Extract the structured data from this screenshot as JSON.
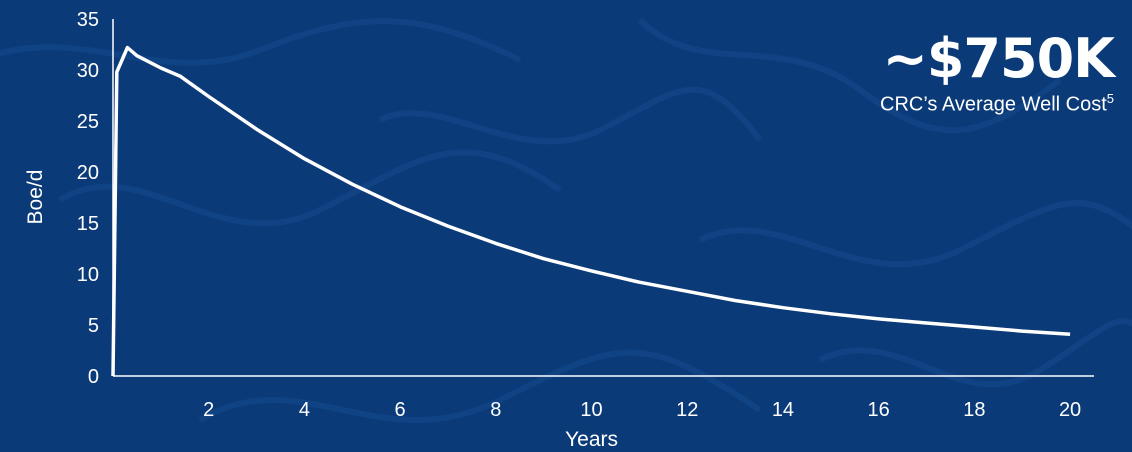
{
  "colors": {
    "background": "#0b3a78",
    "line": "#ffffff",
    "text": "#ffffff",
    "contour": "#164a8c"
  },
  "callout": {
    "value": "~$750K",
    "caption": "CRC’s Average Well Cost",
    "footnote": "5"
  },
  "chart_data": {
    "type": "line",
    "title": "",
    "xlabel": "Years",
    "ylabel": "Boe/d",
    "xlim": [
      0,
      20.5
    ],
    "ylim": [
      0,
      35
    ],
    "xticks": [
      2,
      4,
      6,
      8,
      10,
      12,
      14,
      16,
      18,
      20
    ],
    "yticks": [
      0,
      5,
      10,
      15,
      20,
      25,
      30,
      35
    ],
    "grid": false,
    "legend": "none",
    "series": [
      {
        "x": [
          0,
          0.08,
          0.3,
          0.5,
          1.0,
          1.4,
          2,
          3,
          4,
          5,
          6,
          7,
          8,
          9,
          10,
          11,
          12,
          13,
          14,
          15,
          16,
          17,
          18,
          19,
          20
        ],
        "y": [
          0,
          29.8,
          32.2,
          31.4,
          30.2,
          29.4,
          27.4,
          24.2,
          21.3,
          18.8,
          16.6,
          14.7,
          13.0,
          11.5,
          10.3,
          9.2,
          8.3,
          7.4,
          6.7,
          6.1,
          5.6,
          5.2,
          4.8,
          4.4,
          4.1
        ]
      }
    ]
  }
}
